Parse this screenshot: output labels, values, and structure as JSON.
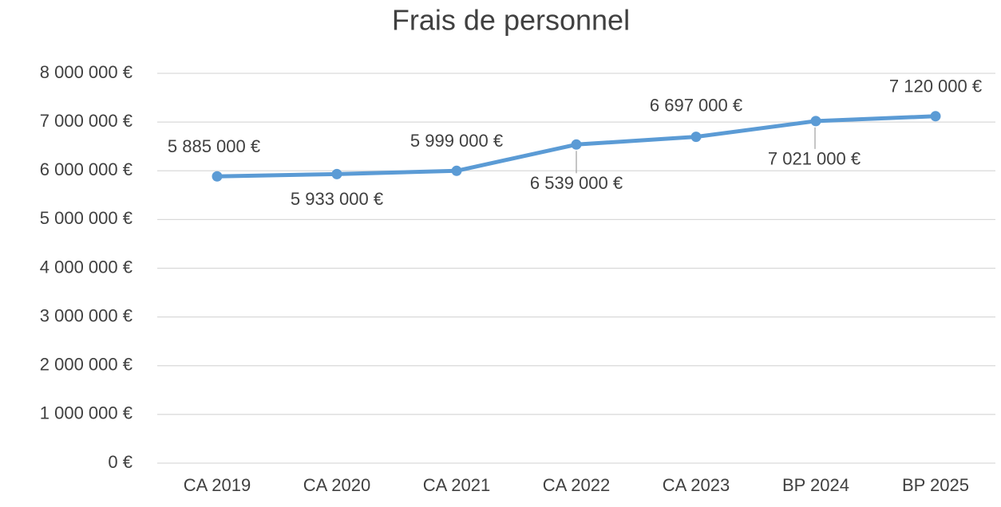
{
  "chart_data": {
    "type": "line",
    "title": "Frais de personnel",
    "categories": [
      "CA 2019",
      "CA 2020",
      "CA 2021",
      "CA 2022",
      "CA 2023",
      "BP 2024",
      "BP 2025"
    ],
    "series": [
      {
        "name": "Frais de personnel",
        "color": "#5b9bd5",
        "values": [
          5885000,
          5933000,
          5999000,
          6539000,
          6697000,
          7021000,
          7120000
        ],
        "value_labels": [
          "5 885 000 €",
          "5 933 000 €",
          "5 999 000 €",
          "6 539 000 €",
          "6 697 000 €",
          "7 021 000 €",
          "7 120 000 €"
        ]
      }
    ],
    "ylim": [
      0,
      8000000
    ],
    "yticks": [
      {
        "value": 0,
        "label": "0 €"
      },
      {
        "value": 1000000,
        "label": "1 000 000 €"
      },
      {
        "value": 2000000,
        "label": "2 000 000 €"
      },
      {
        "value": 3000000,
        "label": "3 000 000 €"
      },
      {
        "value": 4000000,
        "label": "4 000 000 €"
      },
      {
        "value": 5000000,
        "label": "5 000 000 €"
      },
      {
        "value": 6000000,
        "label": "6 000 000 €"
      },
      {
        "value": 7000000,
        "label": "7 000 000 €"
      },
      {
        "value": 8000000,
        "label": "8 000 000 €"
      }
    ],
    "grid": true
  }
}
